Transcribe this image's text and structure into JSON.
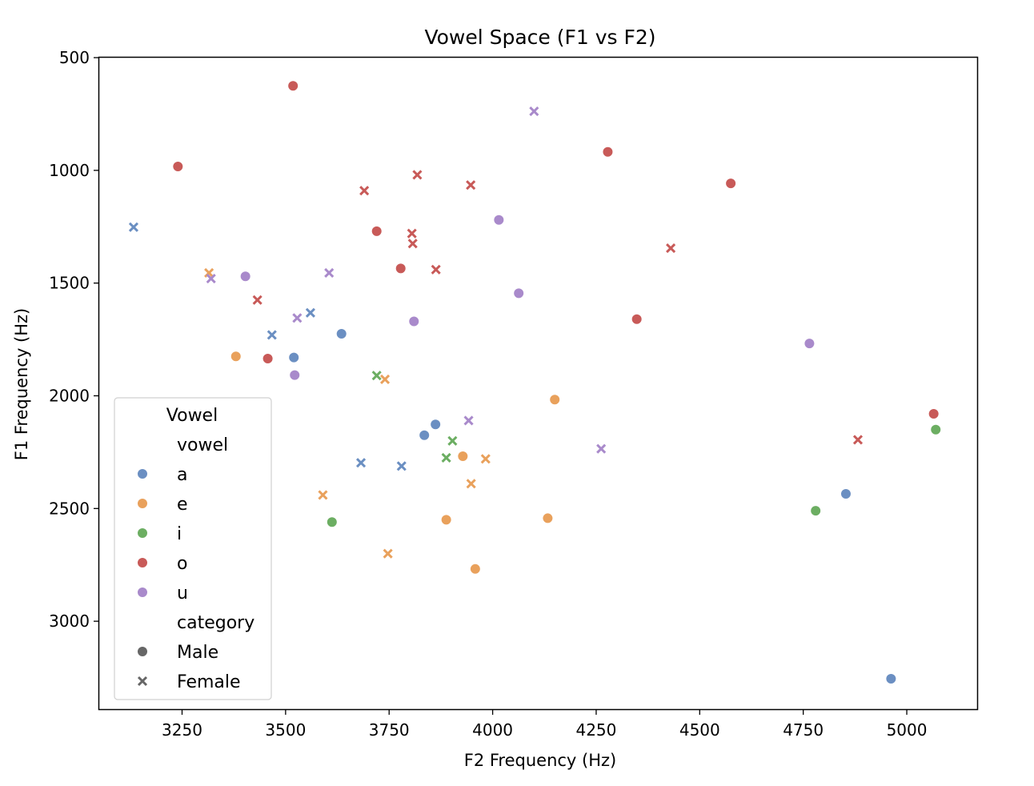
{
  "chart_data": {
    "type": "scatter",
    "title": "Vowel Space (F1 vs F2)",
    "xlabel": "F2 Frequency (Hz)",
    "ylabel": "F1 Frequency (Hz)",
    "xlim": [
      3050,
      5170
    ],
    "ylim": [
      500,
      3390
    ],
    "y_inverted": true,
    "x_ticks": [
      3250,
      3500,
      3750,
      4000,
      4250,
      4500,
      4750,
      5000
    ],
    "y_ticks": [
      500,
      1000,
      1500,
      2000,
      2500,
      3000
    ],
    "grid": false,
    "legend": {
      "placement": "lower-left",
      "title": "Vowel",
      "hue_title": "vowel",
      "style_title": "category"
    },
    "hue_series": [
      {
        "name": "a",
        "color": "#6b8fc2"
      },
      {
        "name": "e",
        "color": "#e9a15c"
      },
      {
        "name": "i",
        "color": "#6cae62"
      },
      {
        "name": "o",
        "color": "#c85a58"
      },
      {
        "name": "u",
        "color": "#a98acb"
      }
    ],
    "style_series": [
      {
        "name": "Male",
        "marker": "circle"
      },
      {
        "name": "Female",
        "marker": "x"
      }
    ],
    "points": [
      {
        "vowel": "a",
        "category": "Male",
        "x": 3635,
        "y": 1725
      },
      {
        "vowel": "a",
        "category": "Male",
        "x": 3520,
        "y": 1830
      },
      {
        "vowel": "a",
        "category": "Male",
        "x": 3862,
        "y": 2127
      },
      {
        "vowel": "a",
        "category": "Male",
        "x": 3835,
        "y": 2175
      },
      {
        "vowel": "a",
        "category": "Male",
        "x": 4853,
        "y": 2435
      },
      {
        "vowel": "a",
        "category": "Male",
        "x": 4962,
        "y": 3255
      },
      {
        "vowel": "a",
        "category": "Female",
        "x": 3133,
        "y": 1252
      },
      {
        "vowel": "a",
        "category": "Female",
        "x": 3560,
        "y": 1632
      },
      {
        "vowel": "a",
        "category": "Female",
        "x": 3467,
        "y": 1730
      },
      {
        "vowel": "a",
        "category": "Female",
        "x": 3682,
        "y": 2297
      },
      {
        "vowel": "a",
        "category": "Female",
        "x": 3780,
        "y": 2312
      },
      {
        "vowel": "e",
        "category": "Male",
        "x": 3380,
        "y": 1825
      },
      {
        "vowel": "e",
        "category": "Male",
        "x": 4150,
        "y": 2017
      },
      {
        "vowel": "e",
        "category": "Male",
        "x": 3928,
        "y": 2268
      },
      {
        "vowel": "e",
        "category": "Male",
        "x": 3888,
        "y": 2550
      },
      {
        "vowel": "e",
        "category": "Male",
        "x": 4133,
        "y": 2543
      },
      {
        "vowel": "e",
        "category": "Male",
        "x": 3958,
        "y": 2768
      },
      {
        "vowel": "e",
        "category": "Female",
        "x": 3315,
        "y": 1455
      },
      {
        "vowel": "e",
        "category": "Female",
        "x": 3740,
        "y": 1927
      },
      {
        "vowel": "e",
        "category": "Female",
        "x": 3983,
        "y": 2280
      },
      {
        "vowel": "e",
        "category": "Female",
        "x": 3948,
        "y": 2390
      },
      {
        "vowel": "e",
        "category": "Female",
        "x": 3590,
        "y": 2440
      },
      {
        "vowel": "e",
        "category": "Female",
        "x": 3747,
        "y": 2700
      },
      {
        "vowel": "i",
        "category": "Male",
        "x": 3612,
        "y": 2560
      },
      {
        "vowel": "i",
        "category": "Male",
        "x": 4780,
        "y": 2510
      },
      {
        "vowel": "i",
        "category": "Male",
        "x": 5070,
        "y": 2150
      },
      {
        "vowel": "i",
        "category": "Female",
        "x": 3720,
        "y": 1910
      },
      {
        "vowel": "i",
        "category": "Female",
        "x": 3903,
        "y": 2200
      },
      {
        "vowel": "i",
        "category": "Female",
        "x": 3888,
        "y": 2275
      },
      {
        "vowel": "o",
        "category": "Male",
        "x": 3518,
        "y": 625
      },
      {
        "vowel": "o",
        "category": "Male",
        "x": 3240,
        "y": 983
      },
      {
        "vowel": "o",
        "category": "Male",
        "x": 4278,
        "y": 918
      },
      {
        "vowel": "o",
        "category": "Male",
        "x": 4575,
        "y": 1058
      },
      {
        "vowel": "o",
        "category": "Male",
        "x": 3720,
        "y": 1270
      },
      {
        "vowel": "o",
        "category": "Male",
        "x": 3778,
        "y": 1435
      },
      {
        "vowel": "o",
        "category": "Male",
        "x": 3457,
        "y": 1835
      },
      {
        "vowel": "o",
        "category": "Male",
        "x": 4348,
        "y": 1660
      },
      {
        "vowel": "o",
        "category": "Male",
        "x": 5065,
        "y": 2080
      },
      {
        "vowel": "o",
        "category": "Female",
        "x": 3818,
        "y": 1020
      },
      {
        "vowel": "o",
        "category": "Female",
        "x": 3690,
        "y": 1090
      },
      {
        "vowel": "o",
        "category": "Female",
        "x": 3947,
        "y": 1065
      },
      {
        "vowel": "o",
        "category": "Female",
        "x": 3805,
        "y": 1280
      },
      {
        "vowel": "o",
        "category": "Female",
        "x": 3807,
        "y": 1325
      },
      {
        "vowel": "o",
        "category": "Female",
        "x": 3863,
        "y": 1440
      },
      {
        "vowel": "o",
        "category": "Female",
        "x": 3432,
        "y": 1575
      },
      {
        "vowel": "o",
        "category": "Female",
        "x": 4430,
        "y": 1345
      },
      {
        "vowel": "o",
        "category": "Female",
        "x": 4882,
        "y": 2195
      },
      {
        "vowel": "u",
        "category": "Male",
        "x": 4015,
        "y": 1220
      },
      {
        "vowel": "u",
        "category": "Male",
        "x": 3403,
        "y": 1470
      },
      {
        "vowel": "u",
        "category": "Male",
        "x": 4063,
        "y": 1545
      },
      {
        "vowel": "u",
        "category": "Male",
        "x": 3810,
        "y": 1670
      },
      {
        "vowel": "u",
        "category": "Male",
        "x": 3522,
        "y": 1908
      },
      {
        "vowel": "u",
        "category": "Male",
        "x": 4765,
        "y": 1768
      },
      {
        "vowel": "u",
        "category": "Female",
        "x": 4100,
        "y": 738
      },
      {
        "vowel": "u",
        "category": "Female",
        "x": 3320,
        "y": 1480
      },
      {
        "vowel": "u",
        "category": "Female",
        "x": 3605,
        "y": 1455
      },
      {
        "vowel": "u",
        "category": "Female",
        "x": 3528,
        "y": 1655
      },
      {
        "vowel": "u",
        "category": "Female",
        "x": 3942,
        "y": 2110
      },
      {
        "vowel": "u",
        "category": "Female",
        "x": 4262,
        "y": 2235
      }
    ]
  }
}
